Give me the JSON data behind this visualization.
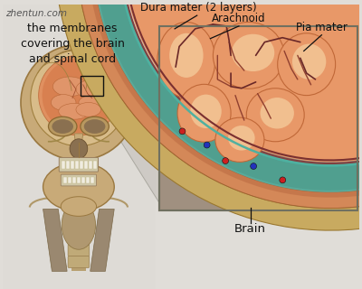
{
  "bg_color": "#e0ddd8",
  "title_text": "the membranes\ncovering the brain\nand spinal cord",
  "watermark": "zhentun.com",
  "labels": {
    "dura_mater": "Dura mater (2 layers)",
    "arachnoid": "Arachnoid",
    "pia_mater": "Pia mater",
    "brain": "Brain"
  },
  "colors": {
    "skull_skin": "#c8b090",
    "skull_bone": "#c8aa70",
    "skull_bone_dark": "#a08848",
    "skull_inner": "#d4b880",
    "brain_orange": "#e89060",
    "brain_light": "#f0c090",
    "brain_dark": "#c87040",
    "dura_color": "#c89050",
    "dura_dark": "#a06828",
    "arachnoid_teal": "#60b0a8",
    "arachnoid_dark": "#409088",
    "pia_maroon": "#8a3838",
    "csf_dark": "#3a7870",
    "vessel_red": "#cc2020",
    "vessel_blue": "#2020cc",
    "diagram_bg": "#a09888",
    "diagram_bg2": "#b8a888",
    "label_line": "#111111",
    "text_color": "#111111",
    "watermark_color": "#555555",
    "funnel_gray": "#c0bab2",
    "eye_dark": "#7a6848",
    "teeth_white": "#e8e0cc"
  },
  "label_fontsize": 8.5,
  "title_fontsize": 9,
  "watermark_fontsize": 7.5
}
